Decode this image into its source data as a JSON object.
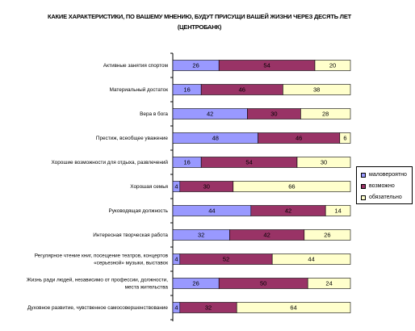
{
  "colors": {
    "series": [
      "#9999ff",
      "#993366",
      "#ffffcc"
    ]
  },
  "chart_data": {
    "type": "bar",
    "orientation": "horizontal",
    "stacked": true,
    "title": "КАКИЕ ХАРАКТЕРИСТИКИ, ПО ВАШЕМУ МНЕНИЮ, БУДУТ ПРИСУЩИ ВАШЕЙ ЖИЗНИ ЧЕРЕЗ ДЕСЯТЬ ЛЕТ (ЦЕНТРОБАНК)",
    "categories": [
      [
        "Активные занятия спортом"
      ],
      [
        "Материальный достаток"
      ],
      [
        "Вера в бога"
      ],
      [
        "Престиж, всеобщее уважение"
      ],
      [
        "Хорошие возможности для отдыха, развлечений"
      ],
      [
        "Хорошая семья"
      ],
      [
        "Руководящая должность"
      ],
      [
        "Интересная творческая работа"
      ],
      [
        "Регулярное чтение книг, посещение театров, концертов",
        "«серьезной» музыки, выставок"
      ],
      [
        "Жизнь ради людей, независимо от профессии, должности,",
        "места жительства"
      ],
      [
        "Духовное развитие, чувственное самосовершенствование"
      ]
    ],
    "series": [
      {
        "name": "маловероятно",
        "values": [
          26,
          16,
          42,
          48,
          16,
          4,
          44,
          32,
          4,
          26,
          4
        ]
      },
      {
        "name": "возможно",
        "values": [
          54,
          46,
          30,
          46,
          54,
          30,
          42,
          42,
          52,
          50,
          32
        ]
      },
      {
        "name": "обязательно",
        "values": [
          20,
          38,
          28,
          6,
          30,
          66,
          14,
          26,
          44,
          24,
          64
        ]
      }
    ],
    "xlim": [
      0,
      100
    ],
    "grid": false,
    "legend_position": "right"
  }
}
